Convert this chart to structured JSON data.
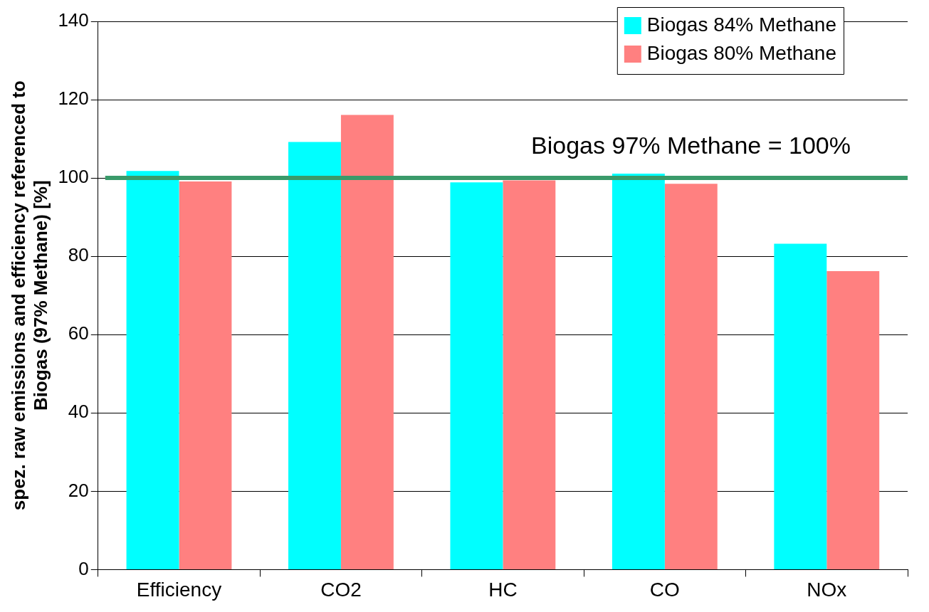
{
  "chart_data": {
    "type": "bar",
    "ylabel": "spez. raw emissions and efficiency referenced to Biogas (97% Methane) [%]",
    "categories": [
      "Efficiency",
      "CO2",
      "HC",
      "CO",
      "NOx"
    ],
    "series": [
      {
        "name": "Biogas 84% Methane",
        "color": "#00ffff",
        "values": [
          101.8,
          109.2,
          98.9,
          101.1,
          83.2
        ]
      },
      {
        "name": "Biogas 80% Methane",
        "color": "#ff8080",
        "values": [
          99.1,
          116.1,
          99.4,
          98.5,
          76.2
        ]
      }
    ],
    "ylim": [
      0,
      140
    ],
    "yticks": [
      0,
      20,
      40,
      60,
      80,
      100,
      120,
      140
    ],
    "ref_lines": [
      {
        "axis": "y",
        "value": 100,
        "label": "Biogas 97% Methane = 100%",
        "color": "#3a9a6a"
      }
    ],
    "grid": "y",
    "legend": "top right"
  }
}
